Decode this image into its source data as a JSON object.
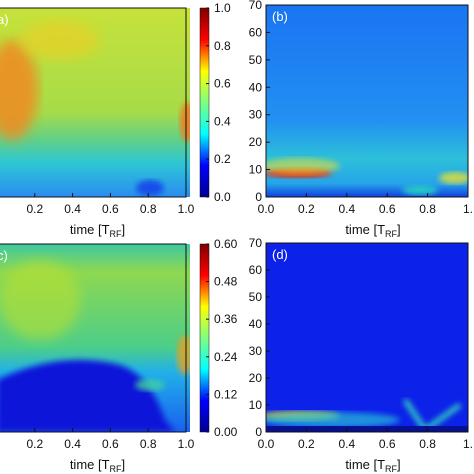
{
  "chart_data": [
    {
      "type": "heatmap",
      "panel_label": "a)",
      "colormap": "jet",
      "xlabel": "time [T",
      "xlabel_sub": "RF",
      "xlabel_end": "]",
      "xlim": [
        0,
        1
      ],
      "xticks": [
        0.2,
        0.4,
        0.6,
        0.8,
        {
          "value": 1.0,
          "label": "1.0"
        }
      ],
      "colorbar_lim": [
        0,
        1
      ],
      "colorbar_ticks": [
        {
          "value": 0,
          "label": "0.0"
        },
        0.2,
        0.4,
        0.6,
        0.8,
        {
          "value": 1.0,
          "label": "1.0"
        }
      ]
    },
    {
      "type": "heatmap",
      "panel_label": "(b)",
      "colormap": "jet",
      "xlabel": "time [T",
      "xlabel_sub": "RF",
      "xlabel_end": "]",
      "xlim": [
        0,
        1
      ],
      "xticks": [
        {
          "value": 0,
          "label": "0.0"
        },
        0.2,
        0.4,
        0.6,
        0.8,
        {
          "value": 1.0,
          "label": "1."
        }
      ],
      "ylim": [
        0,
        70
      ],
      "yticks": [
        0,
        10,
        20,
        30,
        40,
        50,
        60,
        70
      ]
    },
    {
      "type": "heatmap",
      "panel_label": "c)",
      "colormap": "jet",
      "xlabel": "time [T",
      "xlabel_sub": "RF",
      "xlabel_end": "]",
      "xlim": [
        0,
        1
      ],
      "xticks": [
        0.2,
        0.4,
        0.6,
        0.8,
        {
          "value": 1.0,
          "label": "1.0"
        }
      ],
      "colorbar_lim": [
        0,
        0.6
      ],
      "colorbar_ticks": [
        {
          "value": 0,
          "label": "0.00"
        },
        0.12,
        0.24,
        0.36,
        0.48,
        {
          "value": 0.6,
          "label": "0.60"
        }
      ]
    },
    {
      "type": "heatmap",
      "panel_label": "(d)",
      "colormap": "jet",
      "xlabel": "time [T",
      "xlabel_sub": "RF",
      "xlabel_end": "]",
      "xlim": [
        0,
        1
      ],
      "xticks": [
        {
          "value": 0,
          "label": "0.0"
        },
        0.2,
        0.4,
        0.6,
        0.8,
        {
          "value": 1.0,
          "label": "1."
        }
      ],
      "ylim": [
        0,
        70
      ],
      "yticks": [
        0,
        10,
        20,
        30,
        40,
        50,
        60,
        70
      ]
    }
  ]
}
